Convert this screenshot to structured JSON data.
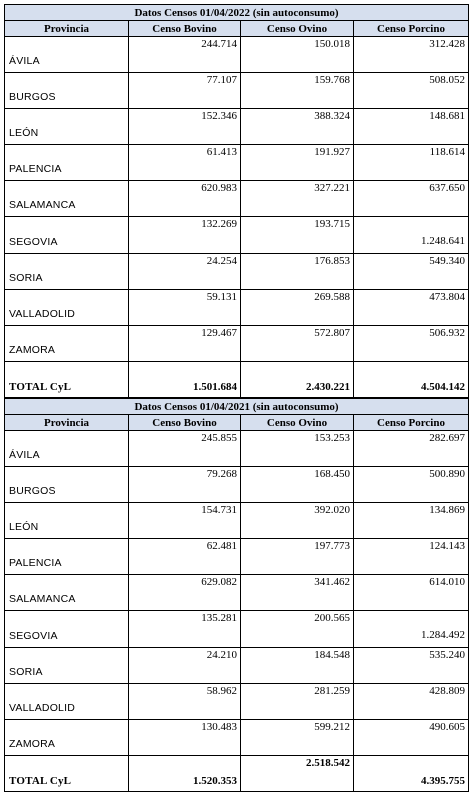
{
  "tables": [
    {
      "title": "Datos Censos 01/04/2022 (sin autoconsumo)",
      "headers": [
        "Provincia",
        "Censo Bovino",
        "Censo Ovino",
        "Censo Porcino"
      ],
      "rows": [
        {
          "provincia": "ÁVILA",
          "bovino": "244.714",
          "ovino": "150.018",
          "porcino": "312.428"
        },
        {
          "provincia": "BURGOS",
          "bovino": "77.107",
          "ovino": "159.768",
          "porcino": "508.052"
        },
        {
          "provincia": "LEÓN",
          "bovino": "152.346",
          "ovino": "388.324",
          "porcino": "148.681"
        },
        {
          "provincia": "PALENCIA",
          "bovino": "61.413",
          "ovino": "191.927",
          "porcino": "118.614"
        },
        {
          "provincia": "SALAMANCA",
          "bovino": "620.983",
          "ovino": "327.221",
          "porcino": "637.650"
        },
        {
          "provincia": "SEGOVIA",
          "bovino": "132.269",
          "ovino": "193.715",
          "porcino": "1.248.641"
        },
        {
          "provincia": "SORIA",
          "bovino": "24.254",
          "ovino": "176.853",
          "porcino": "549.340"
        },
        {
          "provincia": "VALLADOLID",
          "bovino": "59.131",
          "ovino": "269.588",
          "porcino": "473.804"
        },
        {
          "provincia": "ZAMORA",
          "bovino": "129.467",
          "ovino": "572.807",
          "porcino": "506.932"
        }
      ],
      "total": {
        "provincia": "TOTAL CyL",
        "bovino": "1.501.684",
        "ovino": "2.430.221",
        "porcino": "4.504.142"
      }
    },
    {
      "title": "Datos Censos 01/04/2021 (sin autoconsumo)",
      "headers": [
        "Provincia",
        "Censo Bovino",
        "Censo Ovino",
        "Censo Porcino"
      ],
      "rows": [
        {
          "provincia": "ÁVILA",
          "bovino": "245.855",
          "ovino": "153.253",
          "porcino": "282.697"
        },
        {
          "provincia": "BURGOS",
          "bovino": "79.268",
          "ovino": "168.450",
          "porcino": "500.890"
        },
        {
          "provincia": "LEÓN",
          "bovino": "154.731",
          "ovino": "392.020",
          "porcino": "134.869"
        },
        {
          "provincia": "PALENCIA",
          "bovino": "62.481",
          "ovino": "197.773",
          "porcino": "124.143"
        },
        {
          "provincia": "SALAMANCA",
          "bovino": "629.082",
          "ovino": "341.462",
          "porcino": "614.010"
        },
        {
          "provincia": "SEGOVIA",
          "bovino": "135.281",
          "ovino": "200.565",
          "porcino": "1.284.492"
        },
        {
          "provincia": "SORIA",
          "bovino": "24.210",
          "ovino": "184.548",
          "porcino": "535.240"
        },
        {
          "provincia": "VALLADOLID",
          "bovino": "58.962",
          "ovino": "281.259",
          "porcino": "428.809"
        },
        {
          "provincia": "ZAMORA",
          "bovino": "130.483",
          "ovino": "599.212",
          "porcino": "490.605"
        }
      ],
      "total": {
        "provincia": "TOTAL CyL",
        "bovino": "1.520.353",
        "ovino": "2.518.542",
        "porcino": "4.395.755"
      }
    }
  ],
  "colors": {
    "header_background": "#d6dfee",
    "border": "#000000"
  }
}
